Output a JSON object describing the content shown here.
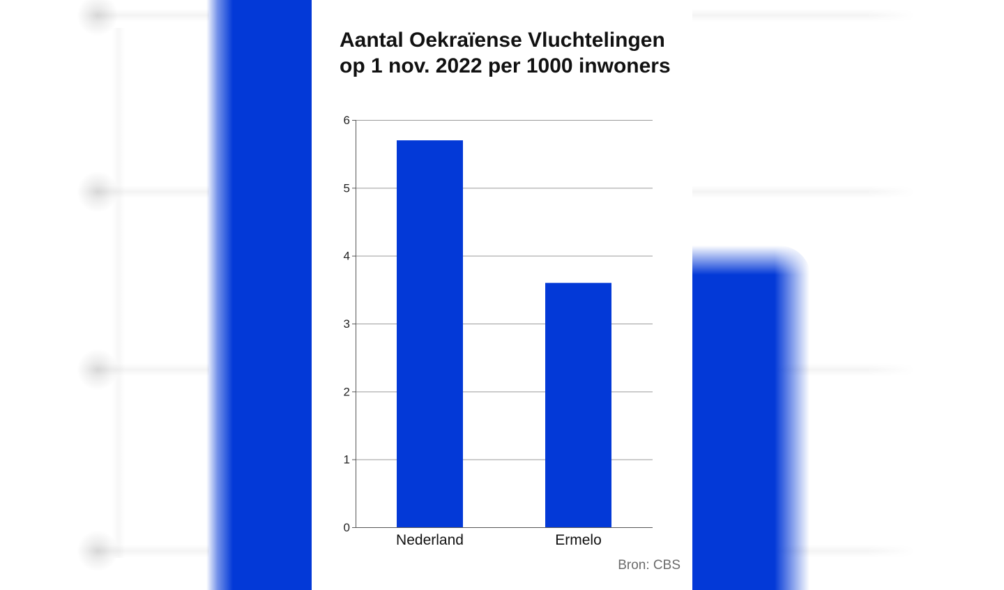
{
  "chart_data": {
    "type": "bar",
    "title_lines": [
      "Aantal Oekraïense Vluchtelingen",
      "op 1 nov. 2022 per 1000 inwoners"
    ],
    "categories": [
      "Nederland",
      "Ermelo"
    ],
    "values": [
      5.7,
      3.6
    ],
    "xlabel": "",
    "ylabel": "",
    "ylim": [
      0,
      6
    ],
    "yticks": [
      0,
      1,
      2,
      3,
      4,
      5,
      6
    ],
    "grid": true,
    "legend": "none",
    "source": "Bron: CBS"
  },
  "colors": {
    "bar": "#0339d7",
    "gridline": "#9a9a9a",
    "axis": "#555555",
    "source_text": "#6a6a6a"
  }
}
